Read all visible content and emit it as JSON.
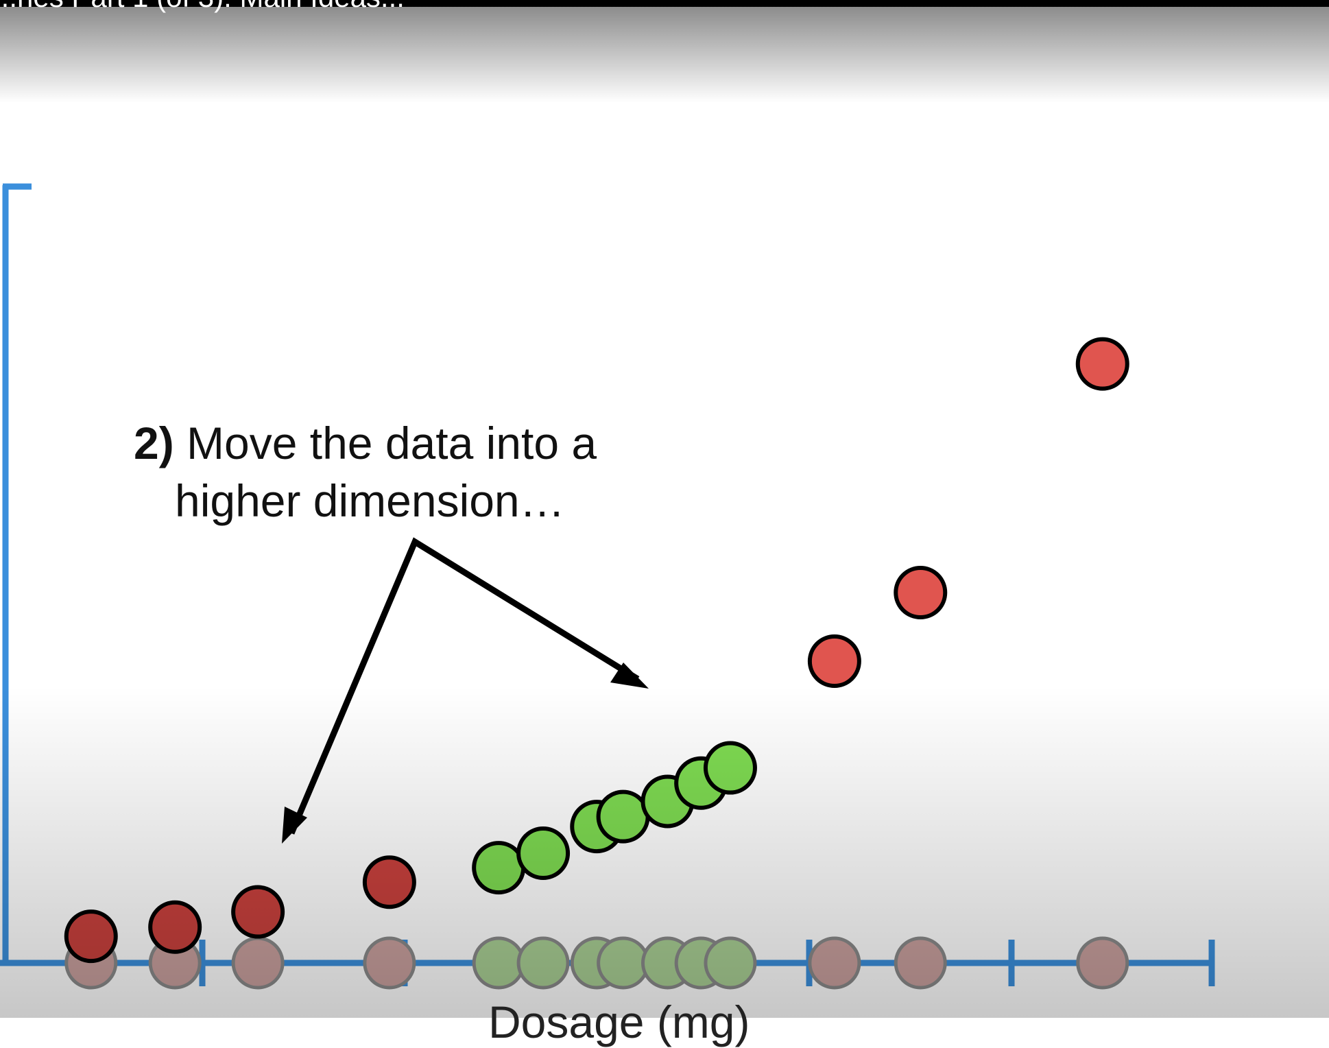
{
  "video": {
    "title": "...nes Part 1 (of 3): Main Ideas..."
  },
  "caption": {
    "step": "2)",
    "line1": "Move the data into a",
    "line2": "higher dimension…"
  },
  "colors": {
    "axis": "#3b8fdc",
    "red_point": "#e0554f",
    "red_point_dark": "#c9413d",
    "green_point": "#7fdc52",
    "faded_red": "#c9a09e",
    "faded_green": "#a9cf94",
    "outline": "#000000",
    "arrow": "#000000"
  },
  "chart_data": {
    "type": "scatter",
    "xlabel": "Dosage (mg)",
    "xlim": [
      0,
      12
    ],
    "ylim": [
      0,
      9
    ],
    "x_ticks": [
      2,
      4,
      8,
      10,
      12
    ],
    "series": [
      {
        "class": "red",
        "points": [
          {
            "x": 0.9,
            "y": 0.35
          },
          {
            "x": 1.73,
            "y": 0.47
          },
          {
            "x": 2.55,
            "y": 0.67
          },
          {
            "x": 3.85,
            "y": 1.06
          },
          {
            "x": 8.25,
            "y": 3.96
          },
          {
            "x": 9.1,
            "y": 4.86
          },
          {
            "x": 10.9,
            "y": 7.86
          }
        ]
      },
      {
        "class": "green",
        "points": [
          {
            "x": 4.93,
            "y": 1.25
          },
          {
            "x": 5.37,
            "y": 1.44
          },
          {
            "x": 5.9,
            "y": 1.79
          },
          {
            "x": 6.16,
            "y": 1.92
          },
          {
            "x": 6.6,
            "y": 2.12
          },
          {
            "x": 6.93,
            "y": 2.36
          },
          {
            "x": 7.22,
            "y": 2.56
          }
        ]
      }
    ]
  }
}
